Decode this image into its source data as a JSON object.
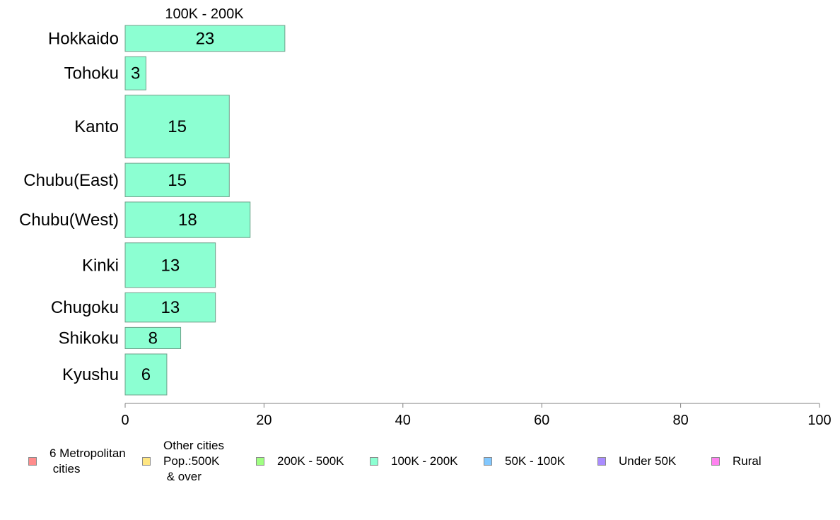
{
  "chart_data": {
    "type": "bar",
    "orientation": "horizontal",
    "title": "100K - 200K",
    "categories": [
      "Hokkaido",
      "Tohoku",
      "Kanto",
      "Chubu(East)",
      "Chubu(West)",
      "Kinki",
      "Chugoku",
      "Shikoku",
      "Kyushu"
    ],
    "series": [
      {
        "name": "100K - 200K",
        "values": [
          23,
          3,
          15,
          15,
          18,
          13,
          13,
          8,
          6
        ],
        "color": "#8cffd2"
      }
    ],
    "data_labels": [
      "23",
      "3",
      "15",
      "15",
      "18",
      "13",
      "13",
      "8",
      "6"
    ],
    "xlim": [
      0,
      100
    ],
    "x_ticks": [
      0,
      20,
      40,
      60,
      80,
      100
    ],
    "x_tick_labels": [
      "0",
      "20",
      "40",
      "60",
      "80",
      "100"
    ],
    "relative_bar_widths": [
      1.0,
      1.28,
      2.42,
      1.29,
      1.37,
      1.72,
      1.13,
      0.82,
      1.58
    ],
    "grid": false,
    "legend_position": "bottom",
    "legend": [
      {
        "label": "6 Metropolitan\n cities",
        "color": "#ff8c8c"
      },
      {
        "label": "Other cities\nPop.:500K\n & over",
        "color": "#ffe682"
      },
      {
        "label": "200K - 500K",
        "color": "#a0ff82"
      },
      {
        "label": "100K - 200K",
        "color": "#8cffd2"
      },
      {
        "label": "50K - 100K",
        "color": "#82c8ff"
      },
      {
        "label": "Under 50K",
        "color": "#aa8cff"
      },
      {
        "label": "Rural",
        "color": "#ff82f0"
      }
    ]
  }
}
